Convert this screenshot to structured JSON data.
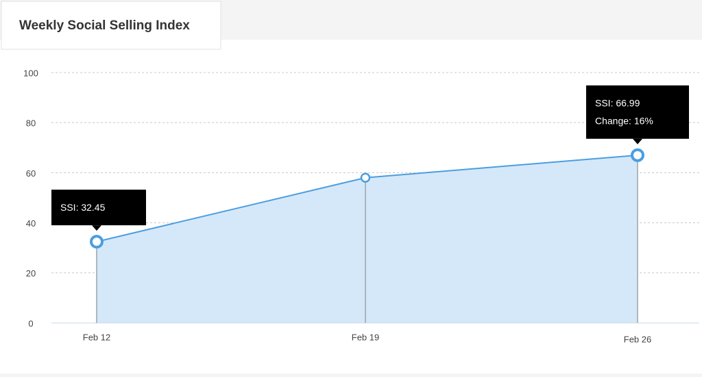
{
  "chart_data": {
    "type": "area",
    "title": "Weekly Social Selling Index",
    "categories": [
      "Feb 12",
      "Feb 19",
      "Feb 26"
    ],
    "values": [
      32.45,
      58,
      66.99
    ],
    "value_labels": [
      "SSI: 32.45",
      null,
      "SSI: 66.99"
    ],
    "annotation": "Change: 16%",
    "color": "#4a9ee0",
    "fill_color": "#d5e8f9",
    "ylim": [
      0,
      100
    ],
    "yticks": [
      0,
      20,
      40,
      60,
      80,
      100
    ],
    "grid": true
  }
}
